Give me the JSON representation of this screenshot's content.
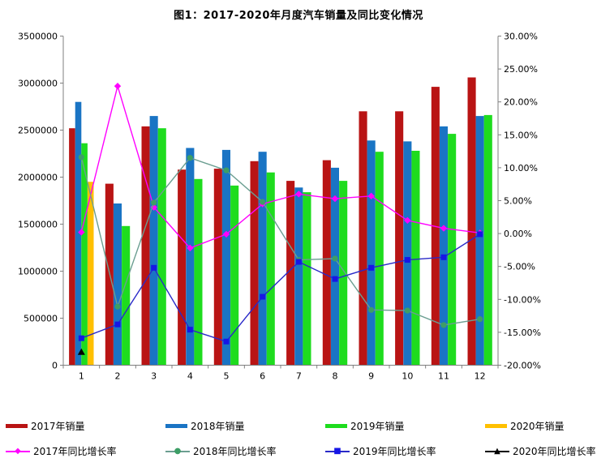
{
  "chart_data": {
    "type": "bar",
    "title": "图1：2017-2020年月度汽车销量及同比变化情况",
    "categories": [
      "1",
      "2",
      "3",
      "4",
      "5",
      "6",
      "7",
      "8",
      "9",
      "10",
      "11",
      "12"
    ],
    "grid": false,
    "legend_position": "bottom",
    "left_axis": {
      "min": 0,
      "max": 3500000,
      "step": 500000
    },
    "right_axis": {
      "min": -20,
      "max": 30,
      "step": 5,
      "suffix": "%",
      "decimals": 2
    },
    "bar_series": [
      {
        "id": "2017-sales",
        "name": "2017年销量",
        "color": "#b91414",
        "values": [
          2520000,
          1930000,
          2540000,
          2080000,
          2090000,
          2170000,
          1960000,
          2180000,
          2700000,
          2700000,
          2960000,
          3060000
        ]
      },
      {
        "id": "2018-sales",
        "name": "2018年销量",
        "color": "#1a74c4",
        "values": [
          2800000,
          1720000,
          2650000,
          2310000,
          2290000,
          2270000,
          1890000,
          2100000,
          2390000,
          2380000,
          2540000,
          2650000
        ]
      },
      {
        "id": "2019-sales",
        "name": "2019年销量",
        "color": "#1edc1e",
        "values": [
          2360000,
          1480000,
          2520000,
          1980000,
          1910000,
          2050000,
          1840000,
          1960000,
          2270000,
          2280000,
          2460000,
          2660000
        ]
      },
      {
        "id": "2020-sales",
        "name": "2020年销量",
        "color": "#ffc000",
        "values": [
          1950000,
          null,
          null,
          null,
          null,
          null,
          null,
          null,
          null,
          null,
          null,
          null
        ]
      }
    ],
    "line_series": [
      {
        "id": "2017-growth",
        "name": "2017年同比增长率",
        "color": "#ff00ff",
        "marker": "diamond",
        "marker_color": "#ff00ff",
        "values": [
          0.2,
          22.4,
          4.0,
          -2.2,
          -0.1,
          4.5,
          6.0,
          5.3,
          5.7,
          2.0,
          0.8,
          0.1
        ]
      },
      {
        "id": "2018-growth",
        "name": "2018年同比增长率",
        "color": "#6b9e91",
        "marker": "circle",
        "marker_color": "#3d9e66",
        "values": [
          11.6,
          -11.1,
          4.7,
          11.5,
          9.6,
          4.8,
          -4.0,
          -3.8,
          -11.6,
          -11.7,
          -13.9,
          -13.0
        ]
      },
      {
        "id": "2019-growth",
        "name": "2019年同比增长率",
        "color": "#2929c8",
        "marker": "square",
        "marker_color": "#1616e6",
        "values": [
          -15.9,
          -13.8,
          -5.2,
          -14.6,
          -16.4,
          -9.6,
          -4.3,
          -6.9,
          -5.2,
          -4.0,
          -3.6,
          -0.1
        ]
      },
      {
        "id": "2020-growth",
        "name": "2020年同比增长率",
        "color": "#000000",
        "marker": "triangle",
        "marker_color": "#000000",
        "values": [
          -18.0,
          null,
          null,
          null,
          null,
          null,
          null,
          null,
          null,
          null,
          null,
          null
        ]
      }
    ],
    "legend_marker_glyphs": {
      "diamond": "◆",
      "circle": "●",
      "square": "■",
      "triangle": "▲"
    }
  }
}
